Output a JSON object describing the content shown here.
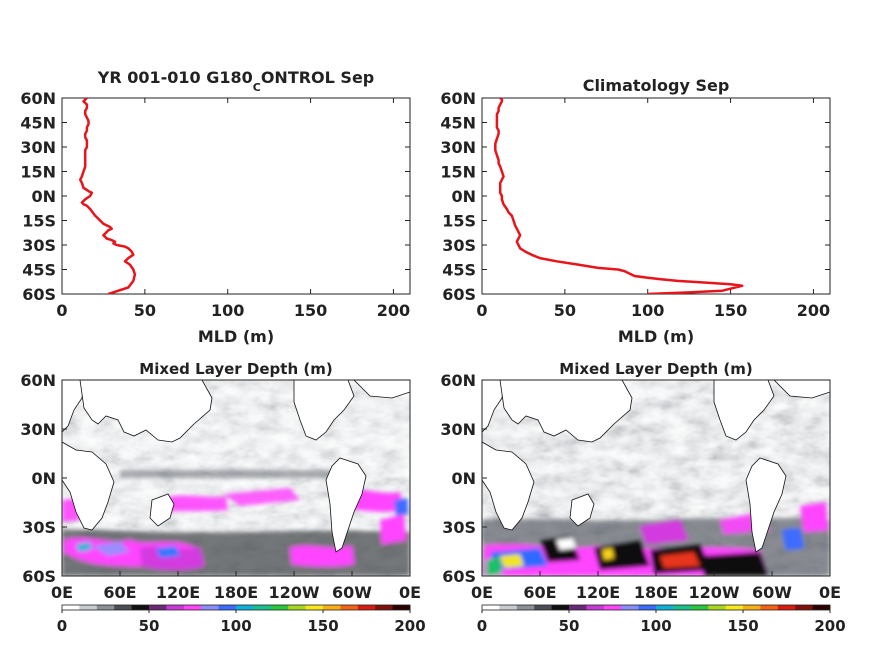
{
  "colors": {
    "profile": "#e8141a",
    "colorbar": [
      "#ffffff",
      "#c8ccd0",
      "#8c9196",
      "#4a4e54",
      "#111111",
      "#6a2a7a",
      "#c83ad8",
      "#ff46ff",
      "#8a8eff",
      "#3a6cff",
      "#0fb0d8",
      "#18c08c",
      "#29c83c",
      "#a8d81e",
      "#f6e81a",
      "#f9b015",
      "#f26414",
      "#d81c10",
      "#801008",
      "#2a0202"
    ]
  },
  "chart_data": [
    {
      "type": "line",
      "title_main": "YR 001-010 G180",
      "title_sub": "C",
      "title_rest": "ONTROL Sep",
      "xlabel": "MLD (m)",
      "xlim": [
        0,
        210
      ],
      "ylim": [
        -60,
        60
      ],
      "xticks": [
        0,
        50,
        100,
        150,
        200
      ],
      "yticks": [
        "60N",
        "45N",
        "30N",
        "15N",
        "0N",
        "15S",
        "30S",
        "45S",
        "60S"
      ],
      "series": [
        {
          "x": [
            28,
            40,
            43,
            44,
            43,
            41,
            38,
            40,
            43,
            42,
            40,
            38,
            33,
            31,
            32,
            30,
            27,
            26,
            25,
            26,
            28,
            30,
            29,
            27,
            25,
            23,
            22,
            20,
            17,
            15,
            13,
            12,
            14,
            17,
            18,
            16,
            13,
            12,
            11,
            12,
            13,
            14,
            14,
            14,
            14,
            14,
            15,
            15,
            15,
            14,
            14,
            15,
            15,
            16,
            16,
            15,
            14,
            14,
            15,
            15,
            15,
            14,
            13,
            14,
            15
          ],
          "y": [
            -60,
            -56,
            -52,
            -48,
            -45,
            -42,
            -40,
            -38,
            -36,
            -34,
            -32,
            -31,
            -30,
            -29,
            -28,
            -27,
            -26,
            -25,
            -24,
            -23,
            -21,
            -20,
            -19,
            -18,
            -17,
            -15,
            -14,
            -12,
            -8,
            -6,
            -5,
            -4,
            -2,
            0,
            2,
            3,
            5,
            8,
            10,
            12,
            15,
            18,
            20,
            22,
            25,
            28,
            30,
            32,
            34,
            36,
            38,
            40,
            42,
            44,
            46,
            48,
            50,
            52,
            54,
            55,
            56,
            57,
            58,
            59,
            60
          ]
        }
      ]
    },
    {
      "type": "line",
      "title": "Climatology Sep",
      "xlabel": "MLD (m)",
      "xlim": [
        0,
        210
      ],
      "ylim": [
        -60,
        60
      ],
      "xticks": [
        0,
        50,
        100,
        150,
        200
      ],
      "yticks": [
        "60N",
        "45N",
        "30N",
        "15N",
        "0N",
        "15S",
        "30S",
        "45S",
        "60S"
      ],
      "series": [
        {
          "x": [
            100,
            125,
            145,
            157,
            150,
            135,
            118,
            108,
            100,
            92,
            88,
            86,
            82,
            70,
            58,
            45,
            35,
            30,
            26,
            23,
            22,
            21,
            22,
            23,
            22,
            21,
            20,
            19,
            18,
            16,
            15,
            13,
            12,
            12,
            11,
            11,
            11,
            12,
            13,
            12,
            11,
            10,
            10,
            9,
            8,
            8,
            8,
            9,
            10,
            10,
            9,
            9,
            9,
            9,
            10,
            10,
            11,
            12,
            12,
            11
          ],
          "y": [
            -60,
            -59,
            -58,
            -55,
            -54,
            -53,
            -52,
            -51,
            -50,
            -49,
            -47,
            -46,
            -45,
            -44,
            -42,
            -40,
            -38,
            -36,
            -34,
            -32,
            -30,
            -28,
            -26,
            -24,
            -22,
            -20,
            -18,
            -15,
            -12,
            -10,
            -8,
            -5,
            -2,
            0,
            2,
            5,
            8,
            10,
            12,
            15,
            18,
            20,
            22,
            25,
            28,
            30,
            32,
            35,
            38,
            40,
            42,
            45,
            48,
            50,
            52,
            54,
            56,
            58,
            59,
            60
          ]
        }
      ]
    },
    {
      "type": "heatmap",
      "title": "Mixed Layer Depth (m)",
      "xticks": [
        "0E",
        "60E",
        "120E",
        "180E",
        "120W",
        "60W",
        "0E"
      ],
      "yticks": [
        "60N",
        "30N",
        "0N",
        "30S",
        "60S"
      ],
      "colorbar_ticks": [
        0,
        50,
        100,
        150,
        200
      ],
      "clim": [
        0,
        200
      ]
    },
    {
      "type": "heatmap",
      "title": "Mixed Layer Depth (m)",
      "xticks": [
        "0E",
        "60E",
        "120E",
        "180E",
        "120W",
        "60W",
        "0E"
      ],
      "yticks": [
        "60N",
        "30N",
        "0N",
        "30S",
        "60S"
      ],
      "colorbar_ticks": [
        0,
        50,
        100,
        150,
        200
      ],
      "clim": [
        0,
        200
      ]
    }
  ]
}
